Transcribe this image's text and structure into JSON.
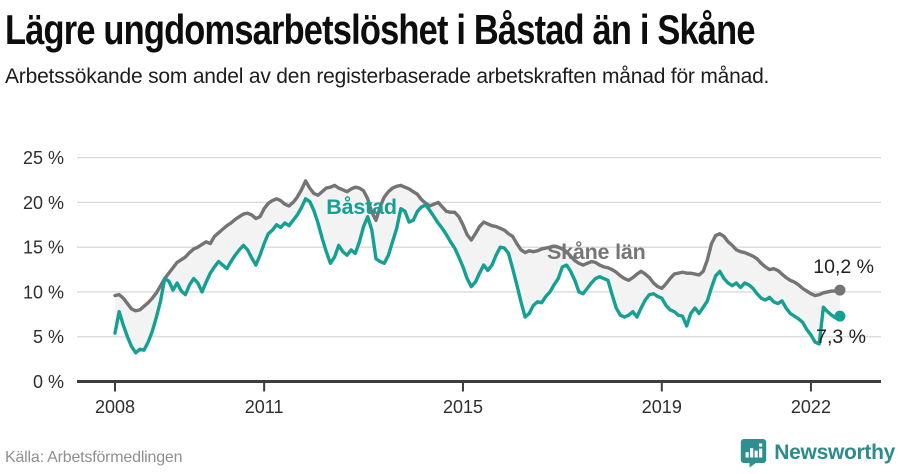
{
  "header": {
    "title": "Lägre ungdomsarbetslöshet i Båstad än i Skåne",
    "subtitle": "Arbetssökande som andel av den registerbaserade arbetskraften månad för månad."
  },
  "footer": {
    "source": "Källa: Arbetsförmedlingen",
    "brand_name": "Newsworthy",
    "brand_color": "#2d8c8b",
    "logo_icon": "bar-chart-speech-bubble-icon"
  },
  "chart_data": {
    "type": "line",
    "unit": "percent of registered labour force",
    "frequency": "monthly",
    "x_start_year": 2008,
    "x_start_month": 1,
    "x_end_year": 2022,
    "x_end_month": 8,
    "ylim": [
      0,
      25
    ],
    "grid": true,
    "background_fill_between_color": "#f3f3f3",
    "gridline_color": "#d9d9d9",
    "axis_color": "#3d3d3d",
    "tick_label_color": "#2e2e2e",
    "y_ticks": [
      {
        "value": 0,
        "label": "0 %"
      },
      {
        "value": 5,
        "label": "5 %"
      },
      {
        "value": 10,
        "label": "10 %"
      },
      {
        "value": 15,
        "label": "15 %"
      },
      {
        "value": 20,
        "label": "20 %"
      },
      {
        "value": 25,
        "label": "25 %"
      }
    ],
    "x_ticks": [
      {
        "year": 2008,
        "label": "2008"
      },
      {
        "year": 2011,
        "label": "2011"
      },
      {
        "year": 2015,
        "label": "2015"
      },
      {
        "year": 2019,
        "label": "2019"
      },
      {
        "year": 2022,
        "label": "2022"
      }
    ],
    "series": [
      {
        "name": "Skåne län",
        "color": "#747474",
        "end_label": "10,2 %",
        "end_value": 10.2,
        "values": [
          9.6,
          9.7,
          9.3,
          8.7,
          8.1,
          7.9,
          8.0,
          8.4,
          8.8,
          9.3,
          9.9,
          10.7,
          11.5,
          12.1,
          12.7,
          13.3,
          13.6,
          13.9,
          14.4,
          14.8,
          15.0,
          15.3,
          15.6,
          15.4,
          16.2,
          16.6,
          17.0,
          17.4,
          17.7,
          18.1,
          18.4,
          18.7,
          18.8,
          18.6,
          18.2,
          18.4,
          19.3,
          19.9,
          20.2,
          20.4,
          20.2,
          19.8,
          19.6,
          20.0,
          20.6,
          21.4,
          22.4,
          21.6,
          21.0,
          20.8,
          21.2,
          21.6,
          21.7,
          21.9,
          21.6,
          21.4,
          21.2,
          21.5,
          21.7,
          21.6,
          21.3,
          20.4,
          18.9,
          18.0,
          19.5,
          20.6,
          21.2,
          21.6,
          21.8,
          21.9,
          21.7,
          21.5,
          21.2,
          20.9,
          20.3,
          19.9,
          19.6,
          19.8,
          20.0,
          19.5,
          19.0,
          18.9,
          18.9,
          18.4,
          17.5,
          16.4,
          15.8,
          16.5,
          17.3,
          17.8,
          17.6,
          17.4,
          17.3,
          17.1,
          16.9,
          16.5,
          16.2,
          15.4,
          14.7,
          14.4,
          14.6,
          14.5,
          14.6,
          14.8,
          14.9,
          15.0,
          15.1,
          15.0,
          14.8,
          14.5,
          14.0,
          13.5,
          13.2,
          13.0,
          13.2,
          13.4,
          13.3,
          13.0,
          12.8,
          12.7,
          12.5,
          12.2,
          11.8,
          11.5,
          11.3,
          11.6,
          12.0,
          12.3,
          12.0,
          11.6,
          11.0,
          10.6,
          10.4,
          10.9,
          11.5,
          12.0,
          12.1,
          12.2,
          12.1,
          12.1,
          12.0,
          11.9,
          12.3,
          13.6,
          15.4,
          16.3,
          16.5,
          16.2,
          15.6,
          15.2,
          14.7,
          14.5,
          14.4,
          14.2,
          14.0,
          13.7,
          13.2,
          12.8,
          12.5,
          12.6,
          12.4,
          12.0,
          11.6,
          11.3,
          11.1,
          10.8,
          10.4,
          10.1,
          9.8,
          9.6,
          9.7,
          9.9,
          10.0,
          10.1,
          10.1,
          10.2
        ]
      },
      {
        "name": "Båstad",
        "color": "#14a092",
        "end_label": "7,3 %",
        "end_value": 7.3,
        "values": [
          5.4,
          7.8,
          6.3,
          5.0,
          3.9,
          3.2,
          3.6,
          3.5,
          4.4,
          5.6,
          7.2,
          9.0,
          11.5,
          11.2,
          10.2,
          11.0,
          10.1,
          9.7,
          10.8,
          11.5,
          11.0,
          10.0,
          11.1,
          12.1,
          12.8,
          13.4,
          13.0,
          12.6,
          13.4,
          14.1,
          14.7,
          15.2,
          14.7,
          13.8,
          13.0,
          14.1,
          15.4,
          16.5,
          16.9,
          17.5,
          17.2,
          17.7,
          17.4,
          18.0,
          18.6,
          19.4,
          20.4,
          20.1,
          19.1,
          17.7,
          16.0,
          14.5,
          13.2,
          13.9,
          15.2,
          14.5,
          14.1,
          14.7,
          14.3,
          15.6,
          17.3,
          18.4,
          16.9,
          13.7,
          13.4,
          13.2,
          14.1,
          15.6,
          17.1,
          19.3,
          19.0,
          17.8,
          18.0,
          19.0,
          19.5,
          19.7,
          19.1,
          18.4,
          17.7,
          17.1,
          16.4,
          15.6,
          14.9,
          13.9,
          12.8,
          11.5,
          10.6,
          11.1,
          12.1,
          13.0,
          12.4,
          13.0,
          14.1,
          15.0,
          14.9,
          14.3,
          12.6,
          10.8,
          8.9,
          7.2,
          7.6,
          8.5,
          8.9,
          8.8,
          9.5,
          10.0,
          10.8,
          11.5,
          12.8,
          13.0,
          12.3,
          11.3,
          10.0,
          9.8,
          10.4,
          11.0,
          11.5,
          11.7,
          11.5,
          11.3,
          9.7,
          8.2,
          7.4,
          7.2,
          7.4,
          7.8,
          7.2,
          8.2,
          9.1,
          9.7,
          9.8,
          9.5,
          9.3,
          8.5,
          8.0,
          7.8,
          7.4,
          7.3,
          6.2,
          7.6,
          8.2,
          7.6,
          8.3,
          9.0,
          10.5,
          11.8,
          12.3,
          11.5,
          11.0,
          10.7,
          11.0,
          10.5,
          11.0,
          10.8,
          10.4,
          9.8,
          9.3,
          9.1,
          9.4,
          8.9,
          8.7,
          9.0,
          8.2,
          7.6,
          7.3,
          7.0,
          6.6,
          5.8,
          5.2,
          4.4,
          4.2,
          8.3,
          7.8,
          7.4,
          7.1,
          7.3
        ]
      }
    ],
    "annotations": [
      {
        "text": "Båstad",
        "year": 2012.25,
        "value": 18.7,
        "color": "#14a092"
      },
      {
        "text": "Skåne län",
        "year": 2016.69,
        "value": 13.7,
        "color": "#757575"
      }
    ]
  }
}
